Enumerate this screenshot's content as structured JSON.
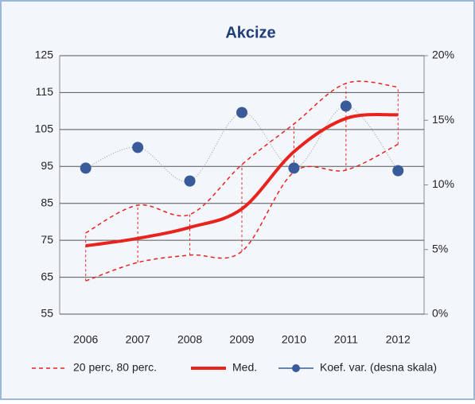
{
  "chart_data": {
    "type": "line",
    "title": "Akcize",
    "categories": [
      "2006",
      "2007",
      "2008",
      "2009",
      "2010",
      "2011",
      "2012"
    ],
    "ylim": [
      55,
      125
    ],
    "yticks": [
      55,
      65,
      75,
      85,
      95,
      105,
      115,
      125
    ],
    "y2lim": [
      0,
      20
    ],
    "y2ticks": [
      {
        "value": 0,
        "label": "0%"
      },
      {
        "value": 5,
        "label": "5%"
      },
      {
        "value": 10,
        "label": "10%"
      },
      {
        "value": 15,
        "label": "15%"
      },
      {
        "value": 20,
        "label": "20%"
      }
    ],
    "grid": true,
    "band": {
      "name": "20 perc, 80 perc.",
      "color": "#e8231e",
      "lower": [
        64,
        69,
        71,
        72,
        93.5,
        94,
        101
      ],
      "upper": [
        77,
        84.5,
        82,
        95.5,
        106.5,
        117.5,
        116.5
      ]
    },
    "series": [
      {
        "name": "Med.",
        "color": "#e8231e",
        "values": [
          73.5,
          75.5,
          78.5,
          83.5,
          99,
          108,
          109
        ]
      },
      {
        "name": "Koef. var. (desna skala)",
        "color": "#3a5b9a",
        "axis": "y2",
        "values": [
          11.3,
          12.9,
          10.3,
          15.6,
          11.3,
          16.1,
          11.1
        ]
      }
    ]
  }
}
